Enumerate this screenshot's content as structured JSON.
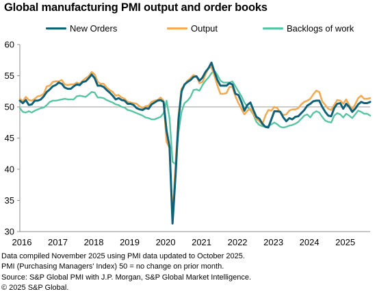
{
  "chart_data": {
    "type": "line",
    "title": "Global manufacturing PMI output and order books",
    "xlabel": "",
    "ylabel": "",
    "ylim": [
      30,
      60
    ],
    "yticks": [
      30,
      35,
      40,
      45,
      50,
      55,
      60
    ],
    "xticks": [
      "2016",
      "2017",
      "2018",
      "2019",
      "2020",
      "2021",
      "2022",
      "2023",
      "2024",
      "2025"
    ],
    "x_start": "2016-01",
    "reference_line": 50,
    "grid": false,
    "legend_position": "top",
    "x": [
      "2016-01",
      "2016-02",
      "2016-03",
      "2016-04",
      "2016-05",
      "2016-06",
      "2016-07",
      "2016-08",
      "2016-09",
      "2016-10",
      "2016-11",
      "2016-12",
      "2017-01",
      "2017-02",
      "2017-03",
      "2017-04",
      "2017-05",
      "2017-06",
      "2017-07",
      "2017-08",
      "2017-09",
      "2017-10",
      "2017-11",
      "2017-12",
      "2018-01",
      "2018-02",
      "2018-03",
      "2018-04",
      "2018-05",
      "2018-06",
      "2018-07",
      "2018-08",
      "2018-09",
      "2018-10",
      "2018-11",
      "2018-12",
      "2019-01",
      "2019-02",
      "2019-03",
      "2019-04",
      "2019-05",
      "2019-06",
      "2019-07",
      "2019-08",
      "2019-09",
      "2019-10",
      "2019-11",
      "2019-12",
      "2020-01",
      "2020-02",
      "2020-03",
      "2020-04",
      "2020-05",
      "2020-06",
      "2020-07",
      "2020-08",
      "2020-09",
      "2020-10",
      "2020-11",
      "2020-12",
      "2021-01",
      "2021-02",
      "2021-03",
      "2021-04",
      "2021-05",
      "2021-06",
      "2021-07",
      "2021-08",
      "2021-09",
      "2021-10",
      "2021-11",
      "2021-12",
      "2022-01",
      "2022-02",
      "2022-03",
      "2022-04",
      "2022-05",
      "2022-06",
      "2022-07",
      "2022-08",
      "2022-09",
      "2022-10",
      "2022-11",
      "2022-12",
      "2023-01",
      "2023-02",
      "2023-03",
      "2023-04",
      "2023-05",
      "2023-06",
      "2023-07",
      "2023-08",
      "2023-09",
      "2023-10",
      "2023-11",
      "2023-12",
      "2024-01",
      "2024-02",
      "2024-03",
      "2024-04",
      "2024-05",
      "2024-06",
      "2024-07",
      "2024-08",
      "2024-09",
      "2024-10",
      "2024-11",
      "2024-12",
      "2025-01",
      "2025-02",
      "2025-03",
      "2025-04",
      "2025-05",
      "2025-06",
      "2025-07",
      "2025-08",
      "2025-09",
      "2025-10"
    ],
    "series": [
      {
        "name": "New Orders",
        "color": "#0f6178",
        "values": [
          51.0,
          50.6,
          51.1,
          50.3,
          50.4,
          51.0,
          51.0,
          51.2,
          51.7,
          52.4,
          52.8,
          53.3,
          53.5,
          53.9,
          53.7,
          53.1,
          52.9,
          52.9,
          53.3,
          53.6,
          53.5,
          54.0,
          54.1,
          54.6,
          55.2,
          54.6,
          53.4,
          53.4,
          53.2,
          52.7,
          52.3,
          51.8,
          51.2,
          51.4,
          51.1,
          51.0,
          50.5,
          50.5,
          50.3,
          49.8,
          49.6,
          49.5,
          49.8,
          49.7,
          50.4,
          50.7,
          51.0,
          51.1,
          50.8,
          46.2,
          43.6,
          31.3,
          39.0,
          48.0,
          52.5,
          53.6,
          54.0,
          54.3,
          54.8,
          54.9,
          54.2,
          54.7,
          55.6,
          56.2,
          57.1,
          55.6,
          54.3,
          53.4,
          53.4,
          53.4,
          53.8,
          53.6,
          52.1,
          51.9,
          50.8,
          49.4,
          50.3,
          50.7,
          49.5,
          48.4,
          48.1,
          47.3,
          46.8,
          46.7,
          48.0,
          49.3,
          49.3,
          49.2,
          48.3,
          47.7,
          48.2,
          48.0,
          48.4,
          48.5,
          49.0,
          49.5,
          50.2,
          50.5,
          50.9,
          51.0,
          51.0,
          50.0,
          49.2,
          48.6,
          48.5,
          49.8,
          50.5,
          50.6,
          49.7,
          50.5,
          50.0,
          49.2,
          49.7,
          50.4,
          50.8,
          50.6,
          50.6,
          50.8
        ],
        "source": "legend"
      },
      {
        "name": "Output",
        "color": "#f2aa55",
        "values": [
          51.3,
          50.9,
          51.6,
          51.1,
          51.0,
          51.3,
          51.7,
          51.8,
          52.1,
          53.3,
          53.4,
          54.0,
          54.1,
          54.1,
          54.3,
          53.6,
          53.5,
          53.6,
          53.6,
          53.9,
          53.7,
          54.2,
          54.6,
          54.9,
          55.6,
          55.2,
          54.0,
          53.7,
          53.7,
          53.1,
          52.7,
          52.4,
          51.8,
          51.9,
          51.5,
          51.3,
          50.8,
          50.7,
          50.6,
          50.5,
          50.1,
          49.8,
          50.1,
          50.2,
          50.8,
          51.0,
          51.1,
          51.5,
          51.0,
          44.4,
          43.4,
          32.3,
          40.8,
          48.6,
          52.9,
          53.5,
          54.2,
          54.6,
          55.1,
          54.9,
          53.8,
          54.0,
          55.2,
          56.2,
          56.4,
          55.0,
          53.4,
          52.1,
          52.1,
          52.2,
          53.2,
          53.2,
          51.7,
          50.6,
          49.7,
          48.8,
          49.4,
          49.7,
          48.9,
          48.1,
          47.7,
          47.2,
          48.6,
          49.5,
          49.4,
          50.0,
          49.8,
          49.1,
          48.7,
          48.8,
          49.4,
          49.6,
          49.6,
          49.8,
          50.4,
          50.8,
          51.0,
          51.3,
          52.0,
          52.6,
          52.4,
          50.9,
          50.3,
          49.7,
          49.5,
          50.3,
          51.1,
          51.0,
          50.5,
          51.2,
          50.3,
          49.6,
          50.4,
          51.4,
          51.8,
          51.3,
          51.3,
          51.4
        ],
        "source": "legend"
      },
      {
        "name": "Backlogs of work",
        "color": "#57c4a2",
        "values": [
          49.8,
          49.2,
          49.1,
          49.3,
          49.1,
          49.4,
          49.6,
          49.8,
          49.9,
          50.3,
          50.8,
          51.0,
          51.0,
          51.1,
          51.2,
          51.3,
          51.2,
          51.2,
          51.2,
          51.7,
          51.8,
          51.7,
          51.6,
          52.0,
          52.4,
          52.3,
          51.5,
          51.5,
          51.4,
          51.1,
          50.9,
          50.7,
          50.4,
          50.3,
          50.0,
          49.9,
          49.5,
          49.4,
          49.2,
          49.0,
          48.8,
          48.6,
          48.3,
          48.2,
          48.0,
          48.0,
          48.2,
          48.4,
          49.0,
          51.0,
          48.2,
          41.2,
          40.8,
          46.0,
          49.2,
          50.6,
          51.0,
          51.6,
          52.7,
          52.8,
          52.6,
          53.5,
          54.2,
          54.7,
          55.4,
          55.8,
          55.1,
          54.2,
          53.9,
          53.9,
          53.9,
          54.1,
          53.3,
          52.5,
          51.7,
          50.7,
          50.0,
          49.5,
          48.8,
          47.6,
          47.1,
          46.9,
          46.8,
          46.9,
          47.2,
          47.5,
          47.2,
          46.8,
          46.7,
          46.8,
          47.0,
          47.1,
          47.3,
          47.6,
          48.1,
          48.6,
          48.8,
          48.3,
          49.0,
          49.3,
          49.1,
          48.4,
          47.8,
          47.6,
          47.5,
          48.6,
          49.0,
          48.8,
          48.3,
          48.9,
          48.6,
          48.2,
          48.8,
          49.4,
          49.2,
          48.9,
          48.9,
          48.6
        ],
        "source": "legend"
      }
    ]
  },
  "footnotes": [
    "Data compiled November 2025 using PMI data updated to October 2025.",
    "PMI (Purchasing Managers' Index) 50 = no change on prior month.",
    "Source: S&P Global PMI with J.P. Morgan, S&P Global Market Intelligence.",
    "© 2025 S&P Global."
  ]
}
